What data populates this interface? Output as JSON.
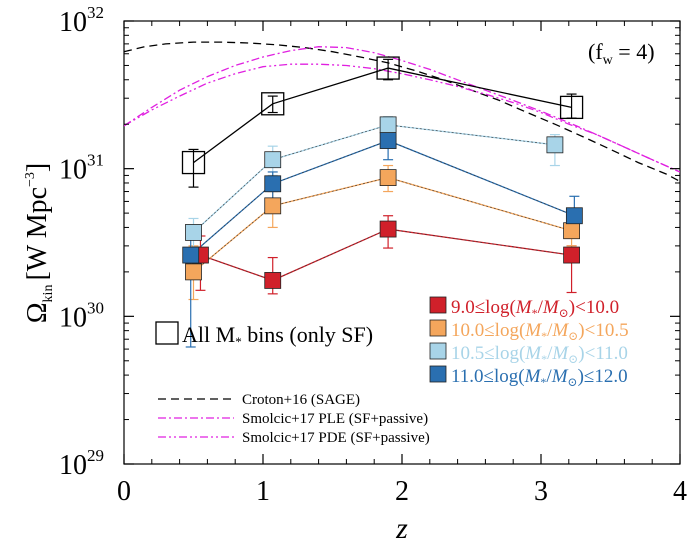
{
  "chart_data": {
    "type": "scatter",
    "xlabel": "z",
    "ylabel_main": "Ω",
    "ylabel_sub": "kin",
    "ylabel_unit": "[W Mpc",
    "ylabel_exp": "−3",
    "ylabel_close": "]",
    "xlim": [
      0,
      4
    ],
    "ylim": [
      1e+29,
      1e+32
    ],
    "yscale": "log",
    "xticks": [
      0,
      1,
      2,
      3,
      4
    ],
    "xtick_labels": [
      "0",
      "1",
      "2",
      "3",
      "4"
    ],
    "yticks": [
      1e+29,
      1e+30,
      1e+31,
      1e+32
    ],
    "ytick_labels": [
      {
        "base": "10",
        "exp": "29"
      },
      {
        "base": "10",
        "exp": "30"
      },
      {
        "base": "10",
        "exp": "31"
      },
      {
        "base": "10",
        "exp": "32"
      }
    ],
    "annotation": "(f  = 4)",
    "annotation_main": "(f",
    "annotation_sub": "w",
    "annotation_end": " = 4)",
    "legend_position": "right",
    "series": [
      {
        "name": "All M* bins (only SF)",
        "label_parts": [
          "All M",
          "*",
          " bins (only SF)"
        ],
        "marker": "open-square",
        "color": "#000000",
        "x": [
          0.5,
          1.07,
          1.9,
          3.22
        ],
        "y": [
          1.1e+31,
          2.75e+31,
          4.8e+31,
          2.6e+31
        ],
        "yerr_low": [
          7.5e+30,
          2.4e+31,
          4e+31,
          2.2e+31
        ],
        "yerr_high": [
          1.35e+31,
          3.1e+31,
          5.5e+31,
          3.2e+31
        ]
      },
      {
        "name": "9.0≤log(M*/M⊙)<10.0",
        "label_parts": [
          "9.0≤log(",
          "M",
          "*/",
          "M",
          "⊙",
          ")<10.0"
        ],
        "marker": "filled-square",
        "color": "#d0202a",
        "x": [
          0.55,
          1.07,
          1.9,
          3.22
        ],
        "y": [
          2.6e+30,
          1.75e+30,
          3.9e+30,
          2.6e+30
        ],
        "yerr_low": [
          1.5e+30,
          1.42e+30,
          2.9e+30,
          1.45e+30
        ],
        "yerr_high": [
          3.5e+30,
          2.5e+30,
          4.8e+30,
          3e+30
        ]
      },
      {
        "name": "10.0≤log(M*/M⊙)<10.5",
        "label_parts": [
          "10.0≤log(",
          "M",
          "*/",
          "M",
          "⊙",
          ")<10.5"
        ],
        "marker": "filled-square",
        "color": "#f4a65c",
        "x": [
          0.5,
          1.07,
          1.9,
          3.22
        ],
        "y": [
          2e+30,
          5.6e+30,
          8.7e+30,
          3.8e+30
        ],
        "yerr_low": [
          1.3e+30,
          4e+30,
          7e+30,
          3e+30
        ],
        "yerr_high": [
          3e+30,
          7e+30,
          1.05e+31,
          4.5e+30
        ]
      },
      {
        "name": "10.5≤log(M*/M⊙)<11.0",
        "label_parts": [
          "10.5≤log(",
          "M",
          "*/",
          "M",
          "⊙",
          ")<11.0"
        ],
        "marker": "filled-square",
        "color": "#a8d4e8",
        "x": [
          0.5,
          1.07,
          1.9,
          3.1
        ],
        "y": [
          3.7e+30,
          1.15e+31,
          1.98e+31,
          1.45e+31
        ],
        "yerr_low": [
          2.6e+30,
          9e+30,
          1.7e+31,
          1.05e+31
        ],
        "yerr_high": [
          4.6e+30,
          1.42e+31,
          2.25e+31,
          1.7e+31
        ]
      },
      {
        "name": "11.0≤log(M*/M⊙)≤12.0",
        "label_parts": [
          "11.0≤log(",
          "M",
          "*/",
          "M",
          "⊙",
          ")≤12.0"
        ],
        "marker": "filled-square",
        "color": "#2a6fb0",
        "x": [
          0.48,
          1.07,
          1.9,
          3.24
        ],
        "y": [
          2.6e+30,
          7.9e+30,
          1.55e+31,
          4.8e+30
        ],
        "yerr_low": [
          6.2e+29,
          6.2e+30,
          1.15e+31,
          3.4e+30
        ],
        "yerr_high": [
          3.5e+30,
          9.5e+30,
          1.85e+31,
          6.5e+30
        ]
      }
    ],
    "model_curves": [
      {
        "name": "Croton+16 (SAGE)",
        "style": "dashed",
        "color": "#000000",
        "x": [
          0,
          0.15,
          0.3,
          0.5,
          0.7,
          0.9,
          1.1,
          1.3,
          1.5,
          1.7,
          1.9,
          2.1,
          2.3,
          2.5,
          2.7,
          2.9,
          3.1,
          3.3,
          3.5,
          3.7,
          3.9,
          4.0
        ],
        "y": [
          6.2e+31,
          6.7e+31,
          7e+31,
          7.2e+31,
          7.2e+31,
          7.1e+31,
          6.9e+31,
          6.6e+31,
          6.2e+31,
          5.7e+31,
          5.2e+31,
          4.6e+31,
          4e+31,
          3.4e+31,
          2.9e+31,
          2.4e+31,
          2e+31,
          1.65e+31,
          1.35e+31,
          1.1e+31,
          9.2e+30,
          8.2e+30
        ]
      },
      {
        "name": "Smolcic+17 PLE (SF+passive)",
        "style": "dashdot",
        "color": "#e020e0",
        "x": [
          0,
          0.2,
          0.4,
          0.6,
          0.8,
          1.0,
          1.2,
          1.4,
          1.6,
          1.8,
          2.0,
          2.2,
          2.4,
          2.6,
          2.8,
          3.0,
          3.2,
          3.4,
          3.6,
          3.8,
          4.0
        ],
        "y": [
          1.95e+31,
          2.6e+31,
          3.4e+31,
          4.2e+31,
          5e+31,
          5.7e+31,
          6.3e+31,
          6.7e+31,
          6.6e+31,
          6.1e+31,
          5.4e+31,
          4.7e+31,
          4e+31,
          3.4e+31,
          2.9e+31,
          2.45e+31,
          2.05e+31,
          1.7e+31,
          1.4e+31,
          1.15e+31,
          9.5e+30
        ]
      },
      {
        "name": "Smolcic+17 PDE (SF+passive)",
        "style": "dashdotdot",
        "color": "#e020e0",
        "x": [
          0,
          0.2,
          0.4,
          0.6,
          0.8,
          1.0,
          1.2,
          1.4,
          1.6,
          1.8,
          2.0,
          2.2,
          2.4,
          2.6,
          2.8,
          3.0,
          3.2,
          3.4,
          3.6,
          3.8,
          4.0
        ],
        "y": [
          1.95e+31,
          2.5e+31,
          3.1e+31,
          3.8e+31,
          4.4e+31,
          4.9e+31,
          5.1e+31,
          5.1e+31,
          5e+31,
          4.75e+31,
          4.4e+31,
          4e+31,
          3.6e+31,
          3.2e+31,
          2.8e+31,
          2.4e+31,
          2e+31,
          1.7e+31,
          1.4e+31,
          1.15e+31,
          9.5e+30
        ]
      }
    ]
  }
}
